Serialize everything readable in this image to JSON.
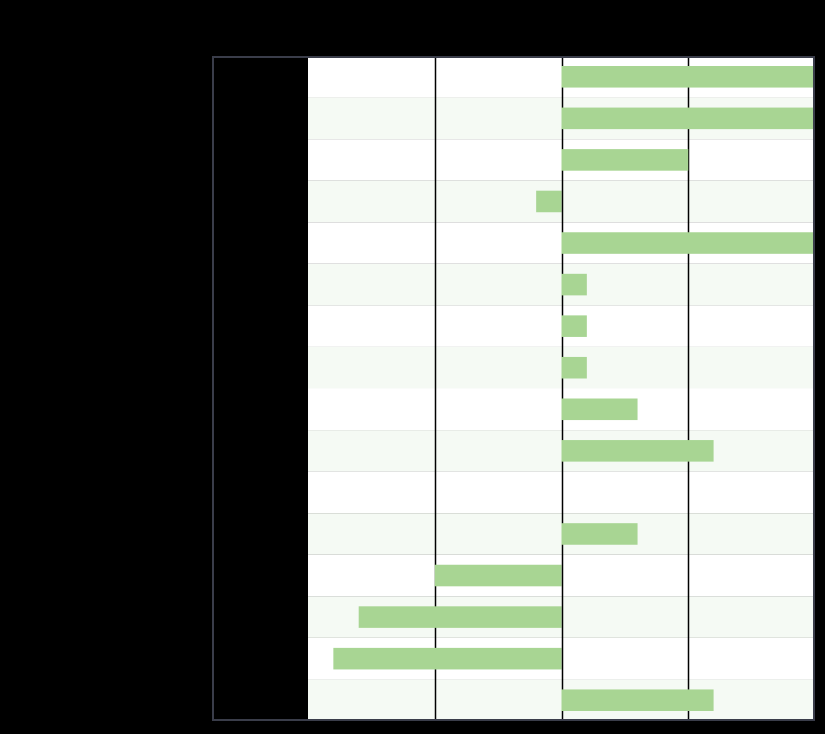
{
  "colors": {
    "background": "#000000",
    "row_white": "#ffffff",
    "row_tint": "#f5faf4",
    "bar_fill": "#a8d593",
    "frame": "#3a3d4a",
    "grid": "#000000",
    "label_panel": "#000000"
  },
  "chart_data": {
    "type": "bar",
    "orientation": "horizontal",
    "title": "",
    "xlabel": "",
    "ylabel": "",
    "xlim": [
      -2,
      2
    ],
    "x_gridlines": [
      -1,
      0,
      1
    ],
    "grid": true,
    "legend": "none",
    "categories": [
      "",
      "",
      "",
      "",
      "",
      "",
      "",
      "",
      "",
      "",
      "",
      "",
      "",
      "",
      "",
      ""
    ],
    "values": [
      2.0,
      2.0,
      1.0,
      -0.2,
      2.0,
      0.2,
      0.2,
      0.2,
      0.6,
      1.2,
      0.0,
      0.6,
      -1.0,
      -1.6,
      -1.8,
      1.2
    ]
  }
}
